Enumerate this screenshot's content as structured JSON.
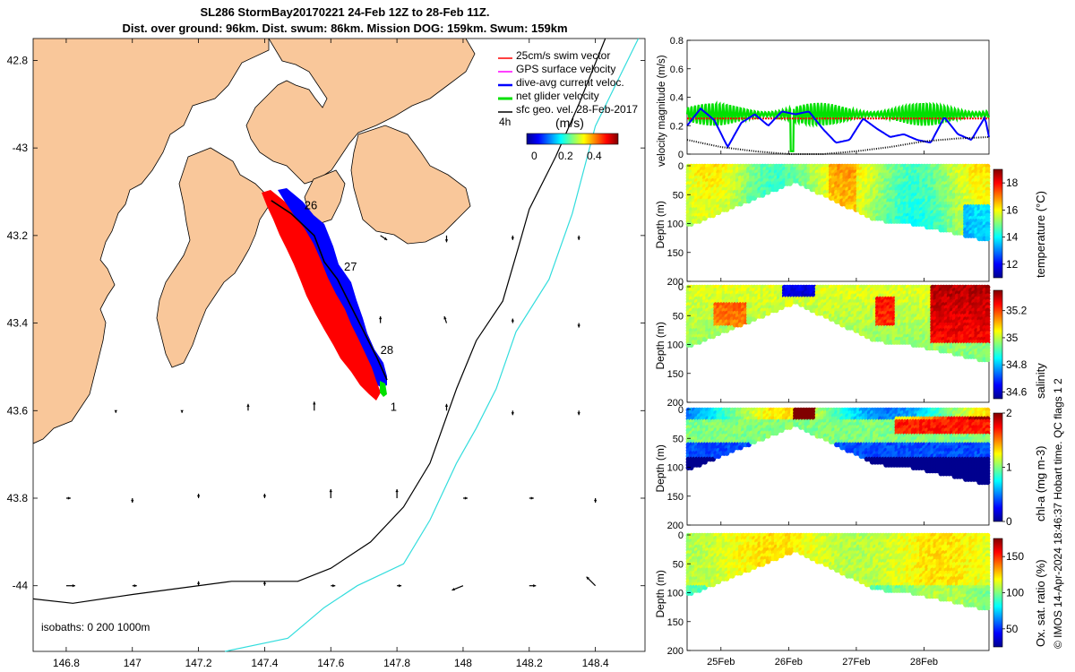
{
  "title_line1": "SL286 StormBay20170221 24-Feb 12Z to 28-Feb 11Z.",
  "title_line2": "Dist. over ground: 96km. Dist. swum: 86km. Mission DOG: 159km. Swum: 159km",
  "credit": "© IMOS 14-Apr-2024 18:46:37 Hobart time. QC flags 1  2",
  "colors": {
    "land": "#f9c79a",
    "swim": "#ff0000",
    "gps": "#ff00ff",
    "dive": "#0000ff",
    "net": "#00e000",
    "geo": "#000000",
    "isobath200": "#000000",
    "isobath1000": "#33dddd"
  },
  "chart_data": [
    {
      "type": "map",
      "name": "track-map",
      "xlim": [
        146.7,
        148.55
      ],
      "ylim": [
        -44.15,
        -42.75
      ],
      "xticks": [
        146.8,
        147,
        147.2,
        147.4,
        147.6,
        147.8,
        148,
        148.2,
        148.4
      ],
      "xtick_labels": [
        "146.8",
        "147",
        "147.2",
        "147.4",
        "147.6",
        "147.8",
        "148",
        "148.2",
        "148.4"
      ],
      "yticks": [
        -42.8,
        -43,
        -43.2,
        -43.4,
        -43.6,
        -43.8,
        -44
      ],
      "ytick_labels": [
        "42.8",
        "-43",
        "43.2",
        "43.4",
        "43.6",
        "43.8",
        "-44"
      ],
      "legend": [
        {
          "label": "25cm/s swim vector",
          "color": "#ff0000"
        },
        {
          "label": "GPS surface velocity",
          "color": "#ff00ff"
        },
        {
          "label": "dive-avg current veloc.",
          "color": "#0000ff"
        },
        {
          "label": "net glider velocity",
          "color": "#00e000"
        },
        {
          "label": "sfc geo. vel. 28-Feb-2017",
          "color": "#000000"
        }
      ],
      "scale_label": "4h",
      "colorbar": {
        "label": "(m/s)",
        "ticks": [
          "0",
          "0.2",
          "0.4"
        ]
      },
      "isobaths_label": "isobaths: 0   200  1000m",
      "day_labels": [
        {
          "text": "26",
          "lon": 147.52,
          "lat": -43.14
        },
        {
          "text": "27",
          "lon": 147.64,
          "lat": -43.28
        },
        {
          "text": "28",
          "lon": 147.75,
          "lat": -43.47
        },
        {
          "text": "1",
          "lon": 147.78,
          "lat": -43.6
        }
      ],
      "glider_track": [
        [
          147.42,
          -43.12
        ],
        [
          147.48,
          -43.15
        ],
        [
          147.55,
          -43.2
        ],
        [
          147.58,
          -43.26
        ],
        [
          147.62,
          -43.3
        ],
        [
          147.66,
          -43.36
        ],
        [
          147.7,
          -43.42
        ],
        [
          147.74,
          -43.48
        ],
        [
          147.77,
          -43.53
        ]
      ],
      "isobath_200m": [
        [
          148.43,
          -42.75
        ],
        [
          148.35,
          -42.9
        ],
        [
          148.28,
          -43.02
        ],
        [
          148.2,
          -43.14
        ],
        [
          148.17,
          -43.22
        ],
        [
          148.12,
          -43.35
        ],
        [
          148.04,
          -43.44
        ],
        [
          147.98,
          -43.55
        ],
        [
          147.9,
          -43.72
        ],
        [
          147.82,
          -43.82
        ],
        [
          147.72,
          -43.9
        ],
        [
          147.6,
          -43.96
        ],
        [
          147.5,
          -43.99
        ],
        [
          147.3,
          -43.99
        ],
        [
          147.0,
          -44.02
        ],
        [
          146.82,
          -44.04
        ],
        [
          146.7,
          -44.03
        ]
      ],
      "isobath_1000m": [
        [
          148.53,
          -42.75
        ],
        [
          148.4,
          -42.95
        ],
        [
          148.33,
          -43.15
        ],
        [
          148.26,
          -43.3
        ],
        [
          148.16,
          -43.42
        ],
        [
          148.1,
          -43.55
        ],
        [
          148.04,
          -43.64
        ],
        [
          147.98,
          -43.72
        ],
        [
          147.9,
          -43.85
        ],
        [
          147.82,
          -43.95
        ],
        [
          147.68,
          -44.0
        ],
        [
          147.58,
          -44.05
        ],
        [
          147.47,
          -44.12
        ],
        [
          147.28,
          -44.15
        ]
      ],
      "geo_vectors": [
        {
          "lon": 147.75,
          "lat": -43.2,
          "u": 0.03,
          "v": -0.02
        },
        {
          "lon": 147.95,
          "lat": -43.2,
          "u": 0.0,
          "v": -0.03
        },
        {
          "lon": 148.15,
          "lat": -43.2,
          "u": 0.0,
          "v": -0.02
        },
        {
          "lon": 148.35,
          "lat": -43.2,
          "u": 0.0,
          "v": -0.02
        },
        {
          "lon": 147.75,
          "lat": -43.4,
          "u": 0.0,
          "v": 0.03
        },
        {
          "lon": 147.95,
          "lat": -43.4,
          "u": -0.01,
          "v": 0.03
        },
        {
          "lon": 148.15,
          "lat": -43.4,
          "u": 0.0,
          "v": 0.02
        },
        {
          "lon": 148.35,
          "lat": -43.4,
          "u": 0.0,
          "v": -0.02
        },
        {
          "lon": 146.95,
          "lat": -43.6,
          "u": 0.0,
          "v": -0.01
        },
        {
          "lon": 147.15,
          "lat": -43.6,
          "u": 0.0,
          "v": -0.01
        },
        {
          "lon": 147.35,
          "lat": -43.6,
          "u": 0.0,
          "v": 0.03
        },
        {
          "lon": 147.55,
          "lat": -43.6,
          "u": 0.0,
          "v": 0.04
        },
        {
          "lon": 147.95,
          "lat": -43.6,
          "u": 0.0,
          "v": 0.03
        },
        {
          "lon": 148.15,
          "lat": -43.6,
          "u": 0.0,
          "v": -0.02
        },
        {
          "lon": 148.35,
          "lat": -43.6,
          "u": 0.0,
          "v": -0.02
        },
        {
          "lon": 146.8,
          "lat": -43.8,
          "u": 0.02,
          "v": 0.0
        },
        {
          "lon": 147.0,
          "lat": -43.8,
          "u": 0.0,
          "v": -0.02
        },
        {
          "lon": 147.2,
          "lat": -43.8,
          "u": 0.0,
          "v": 0.02
        },
        {
          "lon": 147.4,
          "lat": -43.8,
          "u": 0.0,
          "v": 0.02
        },
        {
          "lon": 147.6,
          "lat": -43.8,
          "u": 0.0,
          "v": 0.04
        },
        {
          "lon": 147.8,
          "lat": -43.8,
          "u": 0.0,
          "v": 0.04
        },
        {
          "lon": 148.0,
          "lat": -43.8,
          "u": 0.02,
          "v": 0.0
        },
        {
          "lon": 148.2,
          "lat": -43.8,
          "u": 0.02,
          "v": 0.0
        },
        {
          "lon": 148.4,
          "lat": -43.8,
          "u": 0.0,
          "v": -0.02
        },
        {
          "lon": 146.8,
          "lat": -44.0,
          "u": 0.04,
          "v": 0.0
        },
        {
          "lon": 147.0,
          "lat": -44.0,
          "u": 0.02,
          "v": 0.0
        },
        {
          "lon": 147.2,
          "lat": -44.0,
          "u": 0.0,
          "v": 0.02
        },
        {
          "lon": 147.4,
          "lat": -44.0,
          "u": 0.0,
          "v": 0.02
        },
        {
          "lon": 147.6,
          "lat": -44.0,
          "u": 0.02,
          "v": 0.0
        },
        {
          "lon": 147.8,
          "lat": -44.0,
          "u": 0.02,
          "v": 0.0
        },
        {
          "lon": 148.0,
          "lat": -44.0,
          "u": -0.05,
          "v": -0.02
        },
        {
          "lon": 148.2,
          "lat": -44.0,
          "u": 0.03,
          "v": 0.0
        },
        {
          "lon": 148.4,
          "lat": -44.0,
          "u": -0.04,
          "v": 0.04
        }
      ]
    },
    {
      "type": "line",
      "name": "velocity-magnitude",
      "ylabel": "velocity magnitude (m/s)",
      "ylim": [
        0,
        0.8
      ],
      "yticks": [
        0,
        0.2,
        0.4,
        0.6,
        0.8
      ],
      "ytick_labels": [
        "0",
        "0.2",
        "0.4",
        "0.6",
        "0.8"
      ],
      "xlim": [
        24.5,
        28.96
      ],
      "series": [
        {
          "name": "swim",
          "color": "#ff0000",
          "x": [
            24.5,
            28.96
          ],
          "y": [
            0.25,
            0.25
          ]
        },
        {
          "name": "dive-avg",
          "color": "#0000ff",
          "x": [
            24.5,
            24.7,
            24.9,
            25.1,
            25.3,
            25.5,
            25.7,
            25.9,
            26.1,
            26.3,
            26.5,
            26.7,
            26.9,
            27.1,
            27.3,
            27.5,
            27.7,
            27.9,
            28.1,
            28.3,
            28.5,
            28.7,
            28.9,
            28.96
          ],
          "y": [
            0.2,
            0.32,
            0.24,
            0.05,
            0.22,
            0.28,
            0.2,
            0.3,
            0.28,
            0.3,
            0.18,
            0.08,
            0.1,
            0.25,
            0.18,
            0.12,
            0.14,
            0.1,
            0.08,
            0.26,
            0.14,
            0.1,
            0.26,
            0.12
          ]
        },
        {
          "name": "surface-geo",
          "color": "#000000",
          "x": [
            24.5,
            25.0,
            25.5,
            26.0,
            26.5,
            27.0,
            27.5,
            28.0,
            28.5,
            28.96
          ],
          "y": [
            0.1,
            0.05,
            0.02,
            0.0,
            0.0,
            0.02,
            0.05,
            0.09,
            0.11,
            0.12
          ]
        }
      ],
      "net_glider_velocity": {
        "color": "#00e000",
        "mean": 0.28,
        "amplitude": 0.08
      }
    },
    {
      "type": "heatmap",
      "name": "temperature-section",
      "ylabel": "Depth (m)",
      "clabel": "temperature (°C)",
      "ylim": [
        200,
        0
      ],
      "yticks": [
        0,
        50,
        100,
        150,
        200
      ],
      "clim": [
        11,
        19
      ],
      "cticks": [
        12,
        14,
        16,
        18
      ],
      "bottom_depth": [
        [
          24.5,
          105
        ],
        [
          26.1,
          28
        ],
        [
          27.3,
          95
        ],
        [
          27.8,
          100
        ],
        [
          28.96,
          130
        ]
      ]
    },
    {
      "type": "heatmap",
      "name": "salinity-section",
      "ylabel": "Depth (m)",
      "clabel": "salinity",
      "ylim": [
        200,
        0
      ],
      "yticks": [
        0,
        50,
        100,
        150,
        200
      ],
      "clim": [
        34.55,
        35.35
      ],
      "cticks": [
        34.6,
        34.8,
        35,
        35.2
      ],
      "bottom_depth": [
        [
          24.5,
          105
        ],
        [
          26.1,
          28
        ],
        [
          27.3,
          95
        ],
        [
          27.8,
          100
        ],
        [
          28.96,
          130
        ]
      ]
    },
    {
      "type": "heatmap",
      "name": "chla-section",
      "ylabel": "Depth (m)",
      "clabel": "chl-a (mg m-3)",
      "ylim": [
        200,
        0
      ],
      "yticks": [
        0,
        50,
        100,
        150,
        200
      ],
      "clim": [
        0,
        2
      ],
      "cticks": [
        0,
        1,
        2
      ],
      "bottom_depth": [
        [
          24.5,
          105
        ],
        [
          26.1,
          28
        ],
        [
          27.3,
          95
        ],
        [
          27.8,
          100
        ],
        [
          28.96,
          130
        ]
      ]
    },
    {
      "type": "heatmap",
      "name": "oxygen-section",
      "ylabel": "Depth (m)",
      "clabel": "Ox. sat. ratio (%)",
      "ylim": [
        200,
        0
      ],
      "yticks": [
        0,
        50,
        100,
        150,
        200
      ],
      "clim": [
        25,
        175
      ],
      "cticks": [
        50,
        100,
        150
      ],
      "bottom_depth": [
        [
          24.5,
          105
        ],
        [
          26.1,
          28
        ],
        [
          27.3,
          95
        ],
        [
          27.8,
          100
        ],
        [
          28.96,
          130
        ]
      ]
    }
  ],
  "time_axis": {
    "ticks": [
      25,
      26,
      27,
      28
    ],
    "labels": [
      "25Feb",
      "26Feb",
      "27Feb",
      "28Feb"
    ]
  }
}
